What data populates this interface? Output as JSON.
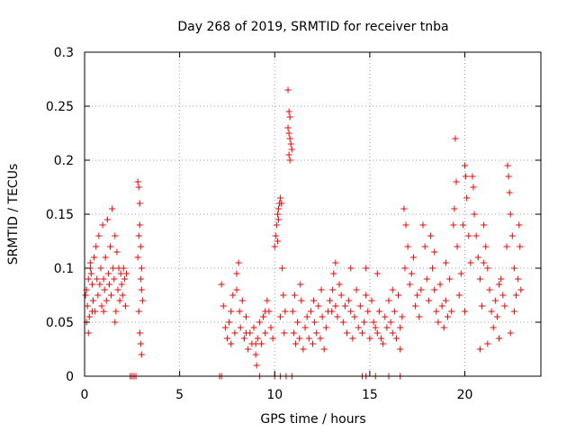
{
  "chart_data": {
    "type": "scatter",
    "title": "Day 268 of 2019, SRMTID for receiver tnba",
    "xlabel": "GPS time / hours",
    "ylabel": "SRMTID / TECUs",
    "xlim": [
      0,
      24
    ],
    "ylim": [
      0,
      0.3
    ],
    "xticks": [
      0,
      5,
      10,
      15,
      20
    ],
    "xtick_labels": [
      "0",
      "5",
      "10",
      "15",
      "20"
    ],
    "yticks": [
      0,
      0.05,
      0.1,
      0.15,
      0.2,
      0.25,
      0.3
    ],
    "ytick_labels": [
      "0",
      "0.05",
      "0.1",
      "0.15",
      "0.2",
      "0.25",
      "0.3"
    ],
    "grid": true,
    "marker": "plus",
    "color": "#ff0000",
    "series": [
      {
        "name": "SRMTID",
        "points": [
          [
            0.05,
            0.075
          ],
          [
            0.1,
            0.08
          ],
          [
            0.15,
            0.065
          ],
          [
            0.2,
            0.09
          ],
          [
            0.25,
            0.055
          ],
          [
            0.3,
            0.1
          ],
          [
            0.35,
            0.095
          ],
          [
            0.4,
            0.085
          ],
          [
            0.45,
            0.07
          ],
          [
            0.5,
            0.11
          ],
          [
            0.55,
            0.06
          ],
          [
            0.6,
            0.12
          ],
          [
            0.65,
            0.09
          ],
          [
            0.7,
            0.075
          ],
          [
            0.75,
            0.13
          ],
          [
            0.8,
            0.085
          ],
          [
            0.85,
            0.1
          ],
          [
            0.9,
            0.065
          ],
          [
            0.95,
            0.14
          ],
          [
            1.0,
            0.09
          ],
          [
            1.05,
            0.08
          ],
          [
            1.1,
            0.11
          ],
          [
            1.15,
            0.07
          ],
          [
            1.2,
            0.145
          ],
          [
            1.25,
            0.095
          ],
          [
            1.3,
            0.085
          ],
          [
            1.35,
            0.12
          ],
          [
            1.4,
            0.075
          ],
          [
            1.45,
            0.155
          ],
          [
            1.5,
            0.1
          ],
          [
            1.55,
            0.09
          ],
          [
            1.6,
            0.13
          ],
          [
            1.65,
            0.06
          ],
          [
            1.7,
            0.115
          ],
          [
            1.75,
            0.08
          ],
          [
            1.8,
            0.1
          ],
          [
            1.85,
            0.07
          ],
          [
            1.9,
            0.095
          ],
          [
            1.95,
            0.085
          ],
          [
            2.0,
            0.075
          ],
          [
            2.05,
            0.1
          ],
          [
            2.1,
            0.09
          ],
          [
            2.15,
            0.065
          ],
          [
            2.2,
            0.095
          ],
          [
            0.1,
            0.05
          ],
          [
            0.2,
            0.04
          ],
          [
            0.3,
            0.105
          ],
          [
            0.4,
            0.06
          ],
          [
            1.0,
            0.06
          ],
          [
            1.6,
            0.05
          ],
          [
            2.8,
            0.18
          ],
          [
            2.85,
            0.175
          ],
          [
            2.9,
            0.16
          ],
          [
            2.9,
            0.14
          ],
          [
            2.95,
            0.12
          ],
          [
            3.0,
            0.1
          ],
          [
            3.0,
            0.08
          ],
          [
            2.85,
            0.06
          ],
          [
            2.9,
            0.04
          ],
          [
            2.95,
            0.03
          ],
          [
            3.0,
            0.02
          ],
          [
            2.85,
            0.13
          ],
          [
            2.95,
            0.09
          ],
          [
            3.05,
            0.07
          ],
          [
            2.8,
            0.11
          ],
          [
            2.4,
            0.0
          ],
          [
            2.5,
            0.0
          ],
          [
            2.6,
            0.0
          ],
          [
            2.7,
            0.0
          ],
          [
            7.2,
            0.085
          ],
          [
            7.3,
            0.065
          ],
          [
            7.4,
            0.045
          ],
          [
            7.5,
            0.035
          ],
          [
            7.6,
            0.05
          ],
          [
            7.7,
            0.03
          ],
          [
            7.8,
            0.075
          ],
          [
            7.9,
            0.04
          ],
          [
            8.0,
            0.095
          ],
          [
            8.1,
            0.105
          ],
          [
            8.15,
            0.06
          ],
          [
            8.2,
            0.045
          ],
          [
            8.3,
            0.07
          ],
          [
            8.4,
            0.035
          ],
          [
            8.5,
            0.055
          ],
          [
            8.6,
            0.025
          ],
          [
            8.7,
            0.04
          ],
          [
            8.8,
            0.03
          ],
          [
            8.9,
            0.045
          ],
          [
            9.0,
            0.02
          ],
          [
            9.1,
            0.035
          ],
          [
            9.2,
            0.05
          ],
          [
            9.3,
            0.03
          ],
          [
            9.4,
            0.055
          ],
          [
            9.5,
            0.04
          ],
          [
            9.6,
            0.07
          ],
          [
            9.7,
            0.06
          ],
          [
            9.8,
            0.045
          ],
          [
            9.9,
            0.035
          ],
          [
            9.05,
            0.01
          ],
          [
            7.7,
            0.06
          ],
          [
            8.0,
            0.08
          ],
          [
            8.5,
            0.04
          ],
          [
            9.0,
            0.03
          ],
          [
            9.5,
            0.06
          ],
          [
            7.1,
            0.0
          ],
          [
            7.2,
            0.0
          ],
          [
            9.2,
            0.0
          ],
          [
            10.0,
            0.12
          ],
          [
            10.05,
            0.13
          ],
          [
            10.1,
            0.14
          ],
          [
            10.15,
            0.15
          ],
          [
            10.2,
            0.155
          ],
          [
            10.25,
            0.16
          ],
          [
            10.3,
            0.165
          ],
          [
            10.35,
            0.16
          ],
          [
            10.15,
            0.125
          ],
          [
            10.2,
            0.145
          ],
          [
            10.4,
            0.1
          ],
          [
            10.45,
            0.075
          ],
          [
            10.3,
            0.055
          ],
          [
            10.5,
            0.04
          ],
          [
            10.55,
            0.06
          ],
          [
            10.7,
            0.265
          ],
          [
            10.75,
            0.245
          ],
          [
            10.8,
            0.24
          ],
          [
            10.75,
            0.225
          ],
          [
            10.8,
            0.22
          ],
          [
            10.85,
            0.215
          ],
          [
            10.8,
            0.2
          ],
          [
            10.75,
            0.205
          ],
          [
            10.9,
            0.21
          ],
          [
            10.7,
            0.23
          ],
          [
            10.95,
            0.06
          ],
          [
            11.0,
            0.04
          ],
          [
            11.1,
            0.03
          ],
          [
            11.2,
            0.05
          ],
          [
            11.3,
            0.035
          ],
          [
            11.4,
            0.07
          ],
          [
            11.5,
            0.025
          ],
          [
            11.6,
            0.045
          ],
          [
            11.7,
            0.055
          ],
          [
            11.8,
            0.035
          ],
          [
            11.9,
            0.06
          ],
          [
            12.0,
            0.03
          ],
          [
            12.1,
            0.05
          ],
          [
            12.2,
            0.04
          ],
          [
            12.3,
            0.065
          ],
          [
            12.4,
            0.035
          ],
          [
            12.5,
            0.055
          ],
          [
            12.6,
            0.025
          ],
          [
            12.7,
            0.045
          ],
          [
            12.8,
            0.06
          ],
          [
            11.05,
            0.075
          ],
          [
            11.35,
            0.085
          ],
          [
            12.05,
            0.07
          ],
          [
            12.45,
            0.08
          ],
          [
            10.0,
            0.0
          ],
          [
            10.3,
            0.0
          ],
          [
            10.6,
            0.0
          ],
          [
            10.9,
            0.0
          ],
          [
            12.9,
            0.07
          ],
          [
            13.0,
            0.06
          ],
          [
            13.05,
            0.08
          ],
          [
            13.1,
            0.095
          ],
          [
            13.2,
            0.065
          ],
          [
            13.3,
            0.055
          ],
          [
            13.4,
            0.085
          ],
          [
            13.5,
            0.075
          ],
          [
            13.6,
            0.05
          ],
          [
            13.7,
            0.065
          ],
          [
            13.8,
            0.04
          ],
          [
            13.9,
            0.07
          ],
          [
            14.0,
            0.06
          ],
          [
            14.1,
            0.035
          ],
          [
            14.2,
            0.055
          ],
          [
            14.3,
            0.08
          ],
          [
            14.4,
            0.045
          ],
          [
            14.5,
            0.065
          ],
          [
            14.6,
            0.04
          ],
          [
            14.7,
            0.05
          ],
          [
            14.8,
            0.075
          ],
          [
            14.9,
            0.06
          ],
          [
            15.0,
            0.035
          ],
          [
            15.1,
            0.07
          ],
          [
            15.2,
            0.05
          ],
          [
            15.3,
            0.045
          ],
          [
            15.4,
            0.04
          ],
          [
            15.5,
            0.06
          ],
          [
            15.6,
            0.035
          ],
          [
            15.7,
            0.03
          ],
          [
            15.8,
            0.055
          ],
          [
            15.9,
            0.045
          ],
          [
            16.0,
            0.07
          ],
          [
            16.1,
            0.05
          ],
          [
            16.2,
            0.04
          ],
          [
            16.3,
            0.06
          ],
          [
            16.4,
            0.035
          ],
          [
            16.5,
            0.075
          ],
          [
            16.6,
            0.045
          ],
          [
            16.7,
            0.055
          ],
          [
            13.2,
            0.105
          ],
          [
            14.0,
            0.1
          ],
          [
            14.8,
            0.1
          ],
          [
            15.4,
            0.095
          ],
          [
            16.2,
            0.08
          ],
          [
            16.6,
            0.025
          ],
          [
            14.6,
            0.0
          ],
          [
            14.8,
            0.0
          ],
          [
            15.3,
            0.0
          ],
          [
            16.0,
            0.0
          ],
          [
            16.6,
            0.0
          ],
          [
            16.8,
            0.155
          ],
          [
            16.9,
            0.14
          ],
          [
            17.0,
            0.12
          ],
          [
            16.85,
            0.1
          ],
          [
            17.1,
            0.085
          ],
          [
            17.2,
            0.095
          ],
          [
            17.3,
            0.11
          ],
          [
            17.4,
            0.065
          ],
          [
            17.5,
            0.075
          ],
          [
            17.6,
            0.055
          ],
          [
            17.7,
            0.08
          ],
          [
            17.8,
            0.14
          ],
          [
            17.9,
            0.12
          ],
          [
            18.0,
            0.09
          ],
          [
            18.1,
            0.07
          ],
          [
            18.2,
            0.13
          ],
          [
            18.3,
            0.1
          ],
          [
            18.4,
            0.08
          ],
          [
            18.5,
            0.06
          ],
          [
            18.6,
            0.05
          ],
          [
            18.7,
            0.085
          ],
          [
            18.8,
            0.065
          ],
          [
            18.9,
            0.045
          ],
          [
            19.0,
            0.07
          ],
          [
            19.1,
            0.055
          ],
          [
            19.2,
            0.09
          ],
          [
            19.3,
            0.06
          ],
          [
            19.4,
            0.14
          ],
          [
            19.45,
            0.155
          ],
          [
            19.5,
            0.22
          ],
          [
            19.55,
            0.18
          ],
          [
            19.6,
            0.12
          ],
          [
            19.7,
            0.075
          ],
          [
            19.8,
            0.095
          ],
          [
            19.9,
            0.14
          ],
          [
            20.0,
            0.195
          ],
          [
            20.05,
            0.185
          ],
          [
            20.1,
            0.165
          ],
          [
            20.2,
            0.13
          ],
          [
            20.3,
            0.105
          ],
          [
            20.4,
            0.185
          ],
          [
            20.45,
            0.175
          ],
          [
            20.5,
            0.15
          ],
          [
            20.6,
            0.13
          ],
          [
            20.7,
            0.11
          ],
          [
            20.8,
            0.09
          ],
          [
            20.9,
            0.065
          ],
          [
            21.0,
            0.14
          ],
          [
            21.1,
            0.12
          ],
          [
            21.2,
            0.1
          ],
          [
            21.3,
            0.08
          ],
          [
            21.4,
            0.06
          ],
          [
            21.5,
            0.045
          ],
          [
            21.6,
            0.07
          ],
          [
            21.7,
            0.055
          ],
          [
            21.8,
            0.085
          ],
          [
            21.9,
            0.09
          ],
          [
            22.0,
            0.075
          ],
          [
            22.1,
            0.065
          ],
          [
            22.2,
            0.12
          ],
          [
            22.25,
            0.195
          ],
          [
            22.3,
            0.185
          ],
          [
            22.35,
            0.17
          ],
          [
            22.4,
            0.15
          ],
          [
            22.5,
            0.13
          ],
          [
            22.6,
            0.1
          ],
          [
            22.7,
            0.075
          ],
          [
            22.8,
            0.09
          ],
          [
            22.85,
            0.14
          ],
          [
            22.9,
            0.12
          ],
          [
            22.95,
            0.08
          ],
          [
            22.6,
            0.06
          ],
          [
            22.4,
            0.04
          ],
          [
            21.2,
            0.03
          ],
          [
            20.8,
            0.025
          ],
          [
            21.8,
            0.035
          ],
          [
            19.0,
            0.105
          ],
          [
            18.4,
            0.115
          ],
          [
            20.0,
            0.06
          ],
          [
            21.0,
            0.105
          ]
        ]
      }
    ]
  }
}
